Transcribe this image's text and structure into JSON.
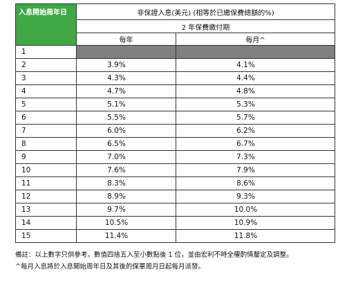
{
  "table": {
    "corner": "入息開始周年日",
    "title": "非保證入息(美元) (相等於已繳保費總額的%)",
    "subtitle": "2 年保費繳付期",
    "columns": [
      "每年",
      "每月^"
    ],
    "rows": [
      [
        "1",
        null,
        null
      ],
      [
        "2",
        "3.9%",
        "4.1%"
      ],
      [
        "3",
        "4.3%",
        "4.4%"
      ],
      [
        "4",
        "4.7%",
        "4.8%"
      ],
      [
        "5",
        "5.1%",
        "5.3%"
      ],
      [
        "6",
        "5.5%",
        "5.7%"
      ],
      [
        "7",
        "6.0%",
        "6.2%"
      ],
      [
        "8",
        "6.5%",
        "6.7%"
      ],
      [
        "9",
        "7.0%",
        "7.3%"
      ],
      [
        "10",
        "7.6%",
        "7.9%"
      ],
      [
        "11",
        "8.3%",
        "8.6%"
      ],
      [
        "12",
        "8.9%",
        "9.3%"
      ],
      [
        "13",
        "9.7%",
        "10.0%"
      ],
      [
        "14",
        "10.5%",
        "10.9%"
      ],
      [
        "15",
        "11.4%",
        "11.8%"
      ]
    ]
  },
  "notes": [
    "備註：以上數字只供參考。數值四捨五入至小數點後 1 位，並由宏利不時全權酌情釐定及調整。",
    "^每月入息將於入息開始周年日及其後的保單周月日起每月派發。"
  ]
}
